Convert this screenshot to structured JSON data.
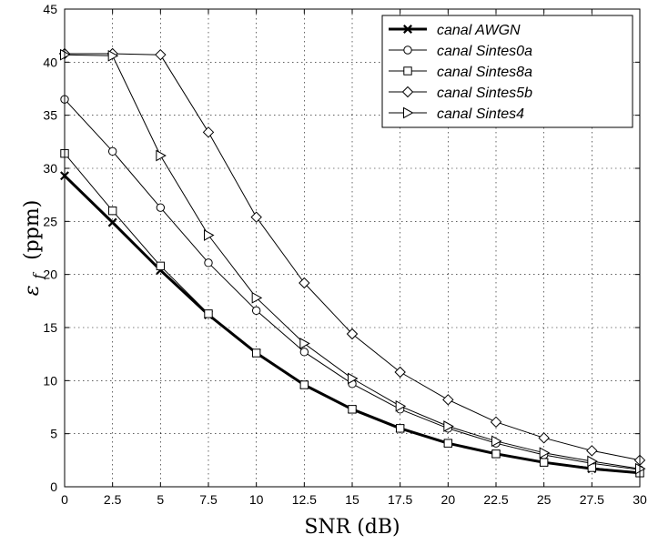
{
  "chart_data": {
    "type": "line",
    "xlabel": "SNR (dB)",
    "ylabel_symbol": "ε",
    "ylabel_subscript": "f",
    "ylabel_unit": "(ppm)",
    "xlim": [
      0,
      30
    ],
    "ylim": [
      0,
      45
    ],
    "grid": true,
    "legend_position": "top-right",
    "x": [
      0,
      2.5,
      5,
      7.5,
      10,
      12.5,
      15,
      17.5,
      20,
      22.5,
      25,
      27.5,
      30
    ],
    "x_tick_labels": [
      "0",
      "2.5",
      "5",
      "7.5",
      "10",
      "12.5",
      "15",
      "17.5",
      "20",
      "22.5",
      "25",
      "27.5",
      "30"
    ],
    "y_ticks": [
      0,
      5,
      10,
      15,
      20,
      25,
      30,
      35,
      40,
      45
    ],
    "series": [
      {
        "name": "canal AWGN",
        "marker": "x",
        "bold": true,
        "values": [
          29.3,
          24.9,
          20.4,
          16.2,
          12.6,
          9.6,
          7.3,
          5.5,
          4.1,
          3.1,
          2.3,
          1.7,
          1.3
        ]
      },
      {
        "name": "canal Sintes0a",
        "marker": "circle",
        "bold": false,
        "values": [
          36.5,
          31.6,
          26.3,
          21.1,
          16.6,
          12.7,
          9.7,
          7.3,
          5.5,
          4.1,
          3.0,
          2.2,
          1.6
        ]
      },
      {
        "name": "canal Sintes8a",
        "marker": "square",
        "bold": false,
        "values": [
          31.4,
          26.0,
          20.8,
          16.3,
          12.6,
          9.6,
          7.3,
          5.5,
          4.1,
          3.1,
          2.3,
          1.8,
          1.3
        ]
      },
      {
        "name": "canal Sintes5b",
        "marker": "diamond",
        "bold": false,
        "values": [
          40.8,
          40.8,
          40.7,
          33.4,
          25.4,
          19.2,
          14.4,
          10.8,
          8.2,
          6.1,
          4.6,
          3.4,
          2.5
        ]
      },
      {
        "name": "canal Sintes4",
        "marker": "triangle-right",
        "bold": false,
        "values": [
          40.7,
          40.6,
          31.2,
          23.7,
          17.8,
          13.5,
          10.2,
          7.6,
          5.7,
          4.3,
          3.2,
          2.4,
          1.7
        ]
      }
    ]
  }
}
